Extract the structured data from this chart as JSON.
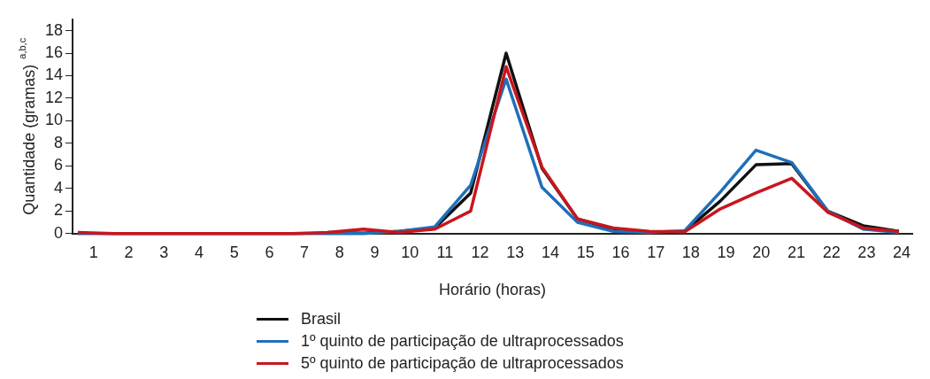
{
  "chart_data": {
    "type": "line",
    "xlabel": "Horário (horas)",
    "ylabel": "Quantidade (gramas) $^{a,b,c}$",
    "x": [
      0.55,
      1.57,
      2.58,
      3.6,
      4.61,
      5.63,
      6.65,
      7.66,
      8.68,
      9.69,
      10.71,
      11.73,
      12.74,
      13.76,
      14.77,
      15.79,
      16.81,
      17.82,
      18.84,
      19.85,
      20.87,
      21.89,
      22.9,
      23.92
    ],
    "series": [
      {
        "name": "Brasil",
        "color": "#111111",
        "values": [
          null,
          null,
          null,
          null,
          null,
          null,
          null,
          0.1,
          0.05,
          0.2,
          0.5,
          3.6,
          16.0,
          5.8,
          1.3,
          0.4,
          0.15,
          0.2,
          2.9,
          6.1,
          6.2,
          2.0,
          0.7,
          0.2
        ]
      },
      {
        "name": "1º quinto de participação de ultraprocessados",
        "color": "#1f6fba",
        "values": [
          0,
          null,
          null,
          null,
          null,
          null,
          null,
          null,
          0,
          0.2,
          0.6,
          4.3,
          13.7,
          4.1,
          1.0,
          0.2,
          0.1,
          0.25,
          3.7,
          7.4,
          6.3,
          2.0,
          0.4,
          0.1
        ]
      },
      {
        "name": "5º quinto de participação de ultraprocessados",
        "color": "#c8161d",
        "values": [
          0.1,
          0,
          0,
          0,
          0,
          0,
          0,
          0.1,
          0.4,
          0.1,
          0.4,
          2.0,
          14.8,
          5.9,
          1.3,
          0.5,
          0.2,
          0.15,
          2.2,
          3.6,
          4.9,
          1.9,
          0.5,
          0.2
        ]
      }
    ],
    "xlim": [
      0.4,
      24.3
    ],
    "xticks": [
      1,
      2,
      3,
      4,
      5,
      6,
      7,
      8,
      9,
      10,
      11,
      12,
      13,
      14,
      15,
      16,
      17,
      18,
      19,
      20,
      21,
      22,
      23,
      24
    ],
    "ylim": [
      0,
      19
    ],
    "yticks": [
      0,
      2,
      4,
      6,
      8,
      10,
      12,
      14,
      16,
      18
    ],
    "grid": false,
    "legend": "bottom",
    "marker": "none",
    "line_style": "solid"
  }
}
